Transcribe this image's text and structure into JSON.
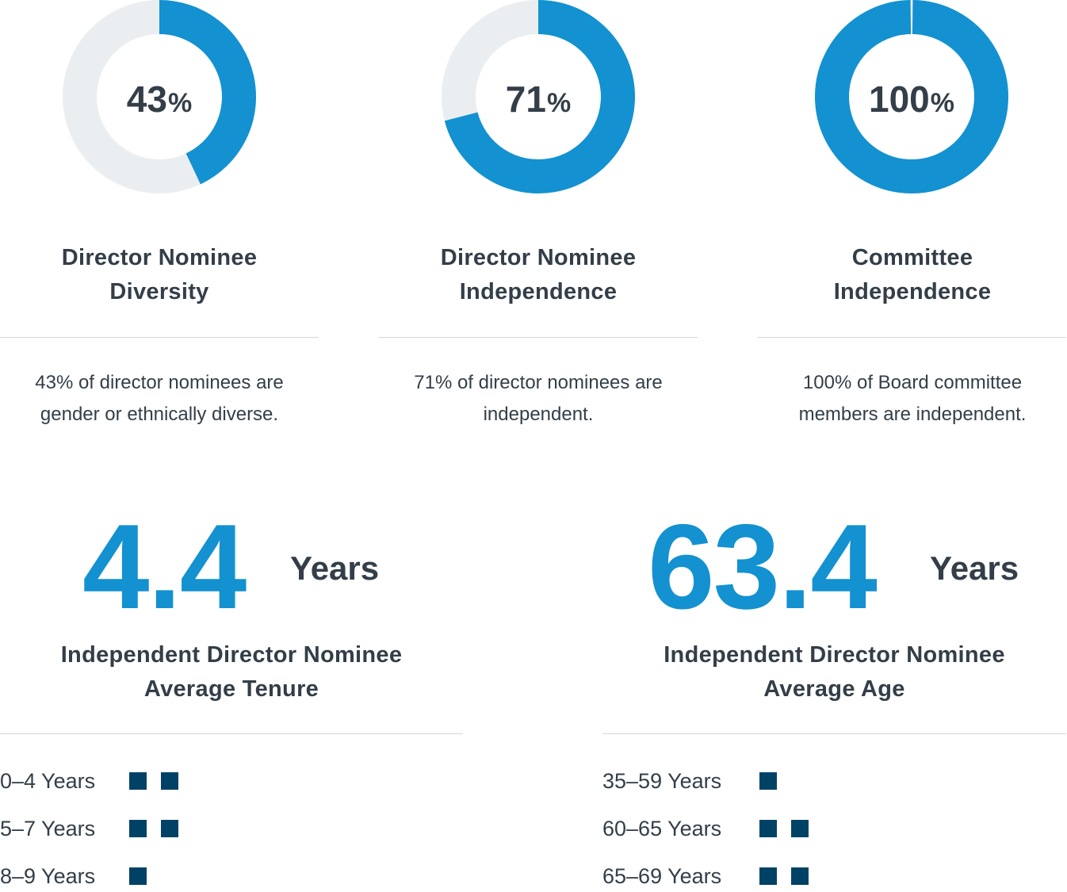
{
  "colors": {
    "accent": "#1391d0",
    "track": "#ebeef1",
    "text": "#333e48",
    "square": "#004266",
    "rule": "#d4d7da"
  },
  "chart_data": [
    {
      "type": "pie",
      "value": 43,
      "value_label": "43",
      "symbol": "%",
      "title_line1": "Director Nominee",
      "title_line2": "Diversity",
      "desc_line1": "43% of director nominees are",
      "desc_line2": "gender or ethnically diverse."
    },
    {
      "type": "pie",
      "value": 71,
      "value_label": "71",
      "symbol": "%",
      "title_line1": "Director Nominee",
      "title_line2": "Independence",
      "desc_line1": "71% of director nominees are",
      "desc_line2": "independent."
    },
    {
      "type": "pie",
      "value": 100,
      "value_label": "100",
      "symbol": "%",
      "title_line1": "Committee",
      "title_line2": "Independence",
      "desc_line1": "100% of Board committee",
      "desc_line2": "members are independent."
    },
    {
      "type": "table",
      "number": "4.4",
      "unit": "Years",
      "title_line1": "Independent Director Nominee",
      "title_line2": "Average Tenure",
      "categories": [
        "0–4 Years",
        "5–7 Years",
        "8–9 Years"
      ],
      "values": [
        2,
        2,
        1
      ]
    },
    {
      "type": "table",
      "number": "63.4",
      "unit": "Years",
      "title_line1": "Independent Director Nominee",
      "title_line2": "Average Age",
      "categories": [
        "35–59 Years",
        "60–65 Years",
        "65–69 Years"
      ],
      "values": [
        1,
        2,
        2
      ]
    }
  ]
}
